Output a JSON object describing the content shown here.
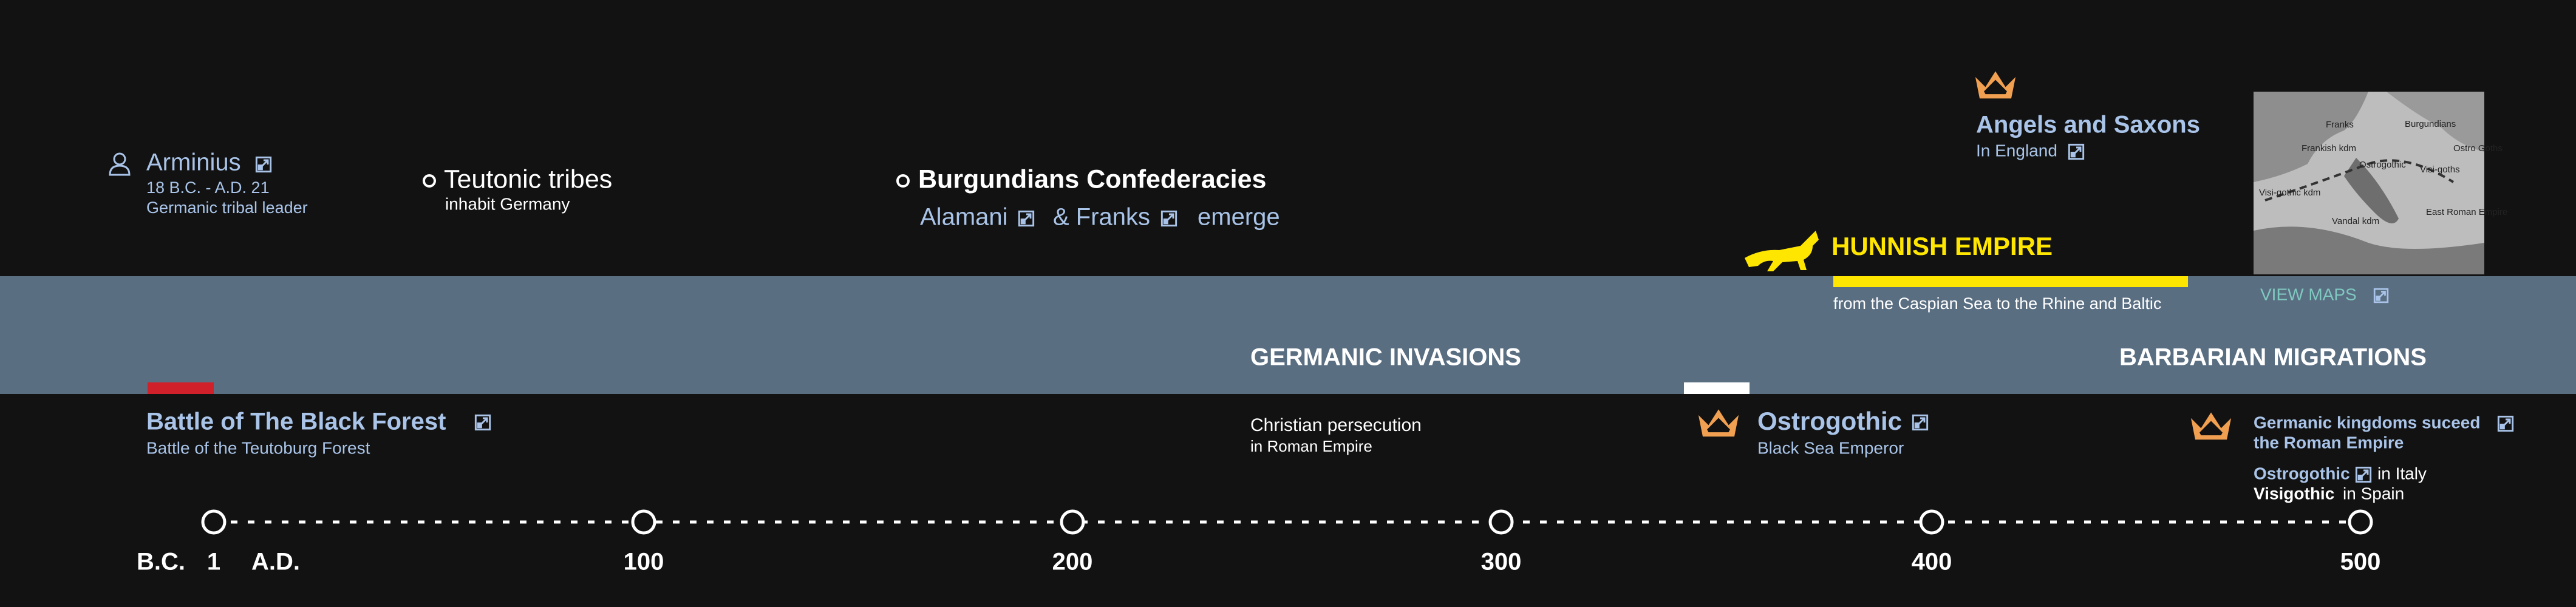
{
  "top_events": {
    "arminius": {
      "title": "Arminius",
      "dates": "18 B.C. - A.D. 21",
      "role": "Germanic tribal leader"
    },
    "teutonic": {
      "title": "Teutonic tribes",
      "detail": "inhabit Germany"
    },
    "burgundians": {
      "title": "Burgundians Confederacies",
      "parts": [
        "Alamani",
        "& Franks",
        "emerge"
      ]
    },
    "angels": {
      "title": "Angels and Saxons",
      "detail": "In England"
    },
    "hunnish": {
      "title": "HUNNISH EMPIRE",
      "detail": "from the Caspian Sea to the Rhine and Baltic"
    },
    "maps": {
      "link": "VIEW MAPS",
      "labels": [
        "Franks",
        "Burgundians",
        "Frankish kdm",
        "Ostrogothic",
        "Ostro Goths",
        "Visi-gothic kdm",
        "Visi-goths",
        "Vandal kdm",
        "East Roman Empire"
      ]
    }
  },
  "band": {
    "left": "GERMANIC INVASIONS",
    "right": "BARBARIAN MIGRATIONS"
  },
  "bottom_events": {
    "battle": {
      "title": "Battle of The Black Forest",
      "detail": "Battle of the Teutoburg Forest"
    },
    "christian": {
      "title": "Christian persecution",
      "detail": "in Roman Empire"
    },
    "ostrogothic": {
      "title": "Ostrogothic",
      "detail": "Black Sea Emperor"
    },
    "kingdoms": {
      "title_lines": [
        "Germanic kingdoms suceed",
        "the Roman Empire"
      ],
      "italy": [
        "Ostrogothic",
        "in Italy"
      ],
      "spain": [
        "Visigothic",
        "in Spain"
      ]
    }
  },
  "timeline": {
    "labels": [
      "B.C.",
      "1",
      "A.D.",
      "100",
      "200",
      "300",
      "400",
      "500"
    ]
  }
}
